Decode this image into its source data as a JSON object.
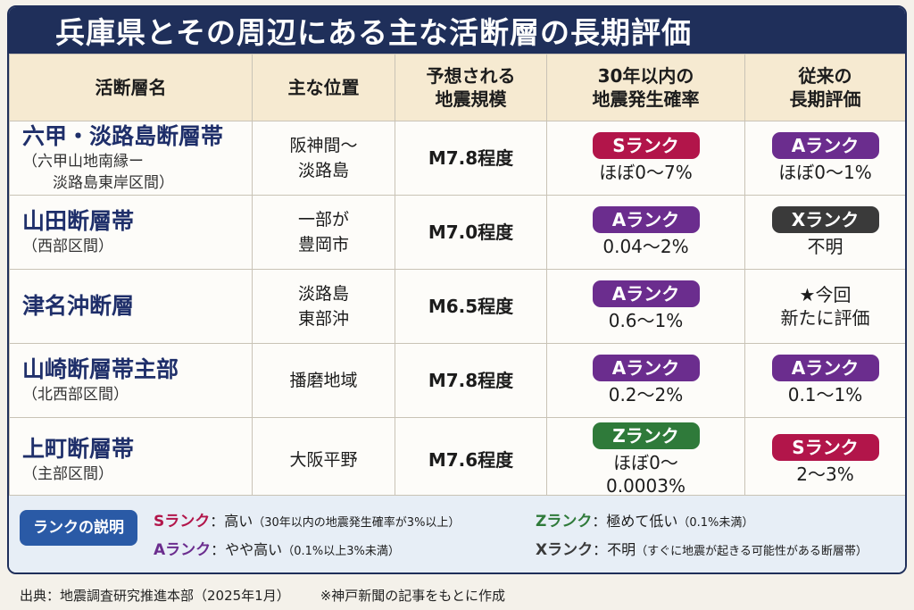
{
  "title": "兵庫県とその周辺にある主な活断層の長期評価",
  "colors": {
    "S": "#b2154a",
    "A": "#6b2d8e",
    "X": "#3a3a3a",
    "Z": "#2f7a3a"
  },
  "headers": {
    "name": "活断層名",
    "location": "主な位置",
    "scale": [
      "予想される",
      "地震規模"
    ],
    "prob": [
      "30年以内の",
      "地震発生確率"
    ],
    "prev": [
      "従来の",
      "長期評価"
    ]
  },
  "rows": [
    {
      "name": "六甲・淡路島断層帯",
      "sub": [
        "（六甲山地南縁ー",
        "淡路島東岸区間）"
      ],
      "location": [
        "阪神間〜",
        "淡路島"
      ],
      "scale": "M7.8程度",
      "rank": "Sランク",
      "rank_key": "S",
      "prob": [
        "ほぼ0〜7%"
      ],
      "prev_rank": "Aランク",
      "prev_key": "A",
      "prev_text": [
        "ほぼ0〜1%"
      ]
    },
    {
      "name": "山田断層帯",
      "sub": [
        "（西部区間）"
      ],
      "location": [
        "一部が",
        "豊岡市"
      ],
      "scale": "M7.0程度",
      "rank": "Aランク",
      "rank_key": "A",
      "prob": [
        "0.04〜2%"
      ],
      "prev_rank": "Xランク",
      "prev_key": "X",
      "prev_text": [
        "不明"
      ]
    },
    {
      "name": "津名沖断層",
      "sub": [],
      "location": [
        "淡路島",
        "東部沖"
      ],
      "scale": "M6.5程度",
      "rank": "Aランク",
      "rank_key": "A",
      "prob": [
        "0.6〜1%"
      ],
      "prev_rank": "",
      "prev_key": "",
      "prev_text": [
        "★今回",
        "新たに評価"
      ]
    },
    {
      "name": "山崎断層帯主部",
      "sub": [
        "（北西部区間）"
      ],
      "location": [
        "播磨地域"
      ],
      "scale": "M7.8程度",
      "rank": "Aランク",
      "rank_key": "A",
      "prob": [
        "0.2〜2%"
      ],
      "prev_rank": "Aランク",
      "prev_key": "A",
      "prev_text": [
        "0.1〜1%"
      ]
    },
    {
      "name": "上町断層帯",
      "sub": [
        "（主部区間）"
      ],
      "location": [
        "大阪平野"
      ],
      "scale": "M7.6程度",
      "rank": "Zランク",
      "rank_key": "Z",
      "prob": [
        "ほぼ0〜",
        "0.0003%"
      ],
      "prev_rank": "Sランク",
      "prev_key": "S",
      "prev_text": [
        "2〜3%"
      ]
    }
  ],
  "legend": {
    "button": "ランクの説明",
    "items": [
      {
        "key": "Sランク",
        "rank_key": "S",
        "desc": "：高い",
        "note": "（30年以内の地震発生確率が3%以上）"
      },
      {
        "key": "Aランク",
        "rank_key": "A",
        "desc": "：やや高い",
        "note": "（0.1%以上3%未満）"
      },
      {
        "key": "Zランク",
        "rank_key": "Z",
        "desc": "：極めて低い",
        "note": "（0.1%未満）"
      },
      {
        "key": "Xランク",
        "rank_key": "X",
        "desc": "：不明",
        "note": "（すぐに地震が起きる可能性がある断層帯）"
      }
    ]
  },
  "source": "出典：地震調査研究推進本部（2025年1月）",
  "note": "※神戸新聞の記事をもとに作成"
}
